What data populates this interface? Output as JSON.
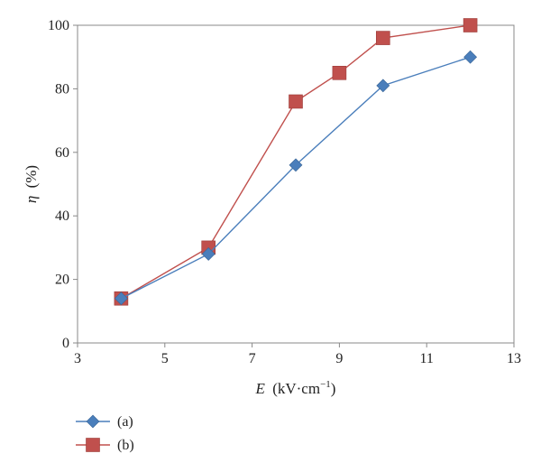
{
  "chart_data": {
    "type": "line",
    "title": "",
    "xlabel": {
      "var": "E",
      "unit": "(kV·cm",
      "exp": "−1",
      "close": ")"
    },
    "ylabel": {
      "var": "η",
      "unit": "(%)"
    },
    "xlim": [
      3,
      13
    ],
    "ylim": [
      0,
      100
    ],
    "xticks": [
      3,
      5,
      7,
      9,
      11,
      13
    ],
    "yticks": [
      0,
      20,
      40,
      60,
      80,
      100
    ],
    "grid": false,
    "legend_position": "bottom-left",
    "series": [
      {
        "name": "(a)",
        "marker": "diamond",
        "color": "#4a7ebb",
        "x": [
          4,
          6,
          8,
          10,
          12
        ],
        "y": [
          14,
          28,
          56,
          81,
          90
        ]
      },
      {
        "name": "(b)",
        "marker": "square",
        "color": "#c0504d",
        "x": [
          4,
          6,
          8,
          9,
          10,
          12
        ],
        "y": [
          14,
          30,
          76,
          85,
          96,
          100
        ]
      }
    ]
  }
}
